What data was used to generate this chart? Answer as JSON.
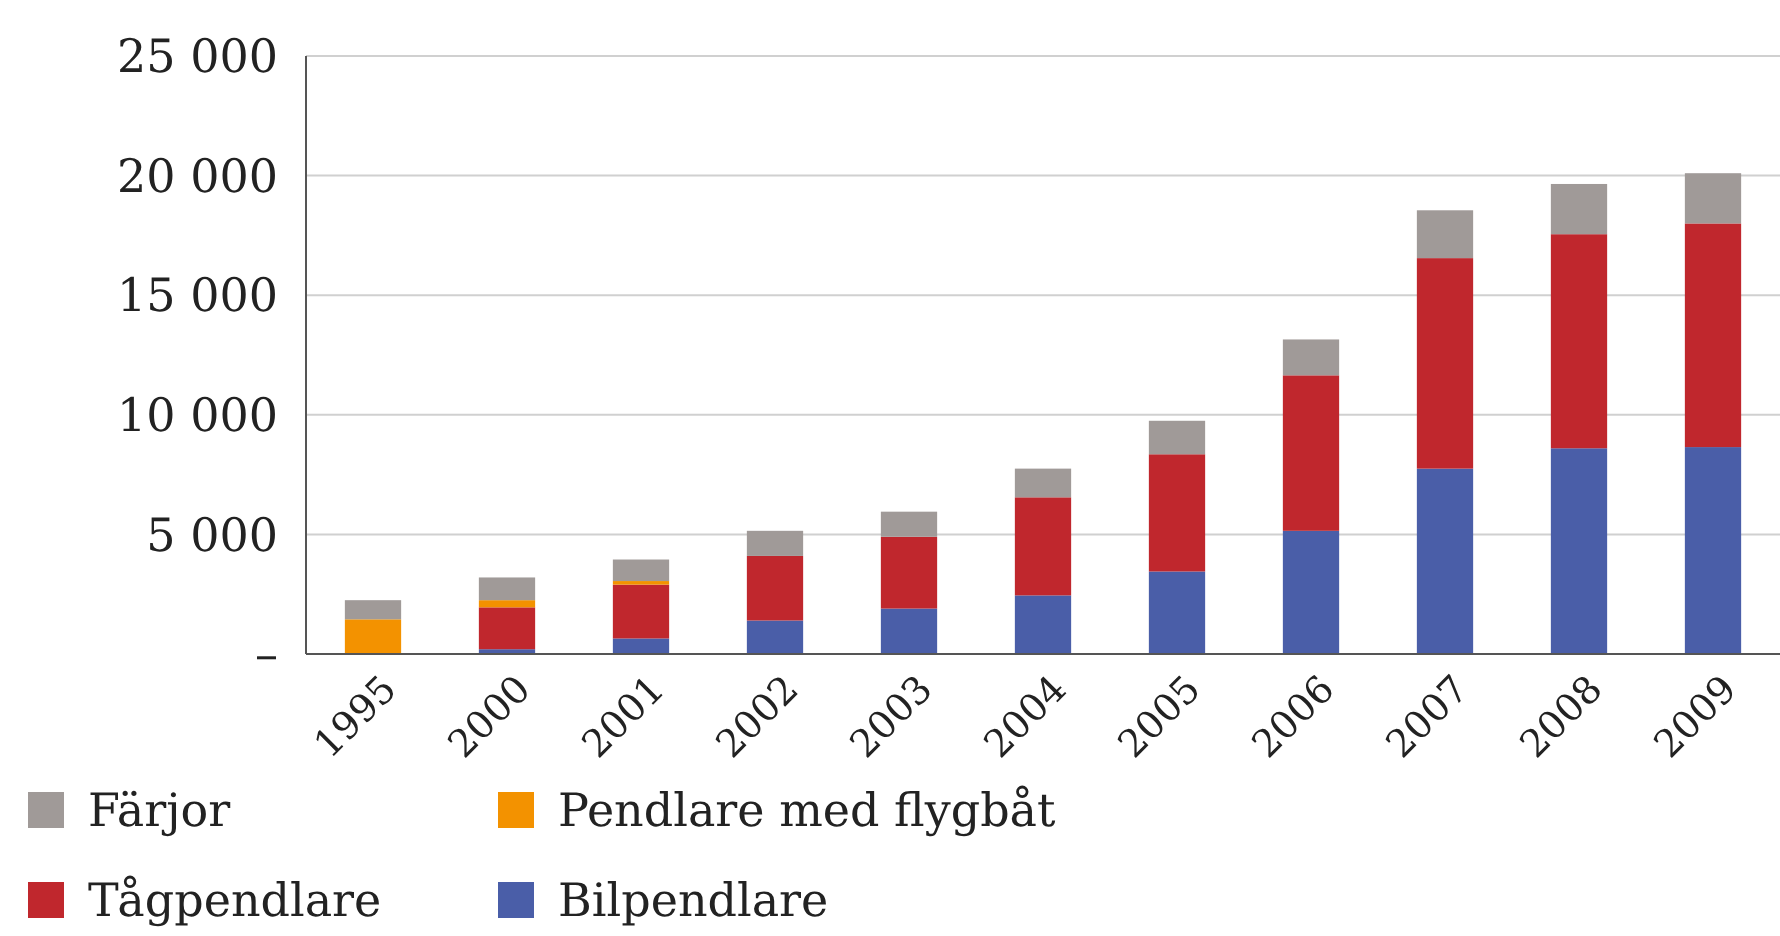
{
  "chart_data": {
    "type": "bar",
    "stacked": true,
    "categories": [
      "1995",
      "2000",
      "2001",
      "2002",
      "2003",
      "2004",
      "2005",
      "2006",
      "2007",
      "2008",
      "2009"
    ],
    "series": [
      {
        "name": "Bilpendlare",
        "color": "#4a5ea8",
        "values": [
          0,
          200,
          650,
          1400,
          1900,
          2450,
          3450,
          5150,
          7750,
          8600,
          8650
        ]
      },
      {
        "name": "Tågpendlare",
        "color": "#c0272d",
        "values": [
          0,
          1750,
          2250,
          2700,
          3000,
          4100,
          4900,
          6500,
          8800,
          8950,
          9350
        ]
      },
      {
        "name": "Pendlare med flygbåt",
        "color": "#f39200",
        "values": [
          1450,
          300,
          150,
          0,
          0,
          0,
          0,
          0,
          0,
          0,
          0
        ]
      },
      {
        "name": "Färjor",
        "color": "#a09a98",
        "values": [
          800,
          950,
          900,
          1050,
          1050,
          1200,
          1400,
          1500,
          2000,
          2100,
          2100
        ]
      }
    ],
    "ylim": [
      0,
      25000
    ],
    "yticks": [
      {
        "value": 0,
        "label": "–"
      },
      {
        "value": 5000,
        "label": "5 000"
      },
      {
        "value": 10000,
        "label": "10 000"
      },
      {
        "value": 15000,
        "label": "15 000"
      },
      {
        "value": 20000,
        "label": "20 000"
      },
      {
        "value": 25000,
        "label": "25 000"
      }
    ],
    "grid": "y",
    "legend": "bottom"
  }
}
